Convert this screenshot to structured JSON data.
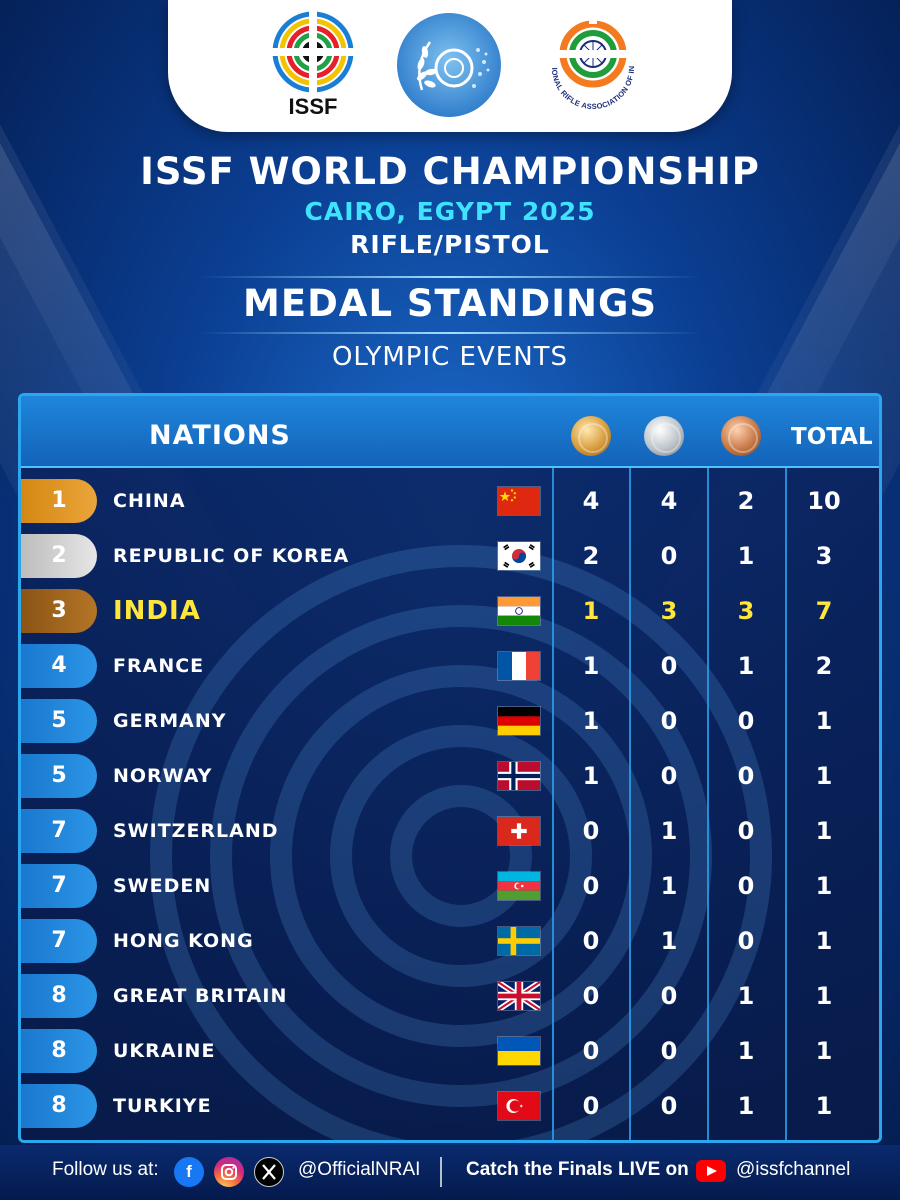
{
  "header": {
    "issf_logo_text": "ISSF",
    "nrai_logo_text": "NATIONAL RIFLE ASSOCIATION OF INDIA"
  },
  "titles": {
    "event": "ISSF WORLD CHAMPIONSHIP",
    "location": "CAIRO, EGYPT 2025",
    "discipline": "RIFLE/PISTOL",
    "heading": "MEDAL STANDINGS",
    "subheading": "OLYMPIC EVENTS"
  },
  "table": {
    "nations_header": "NATIONS",
    "total_header": "TOTAL",
    "medal_icons": [
      "gold-medal-icon",
      "silver-medal-icon",
      "bronze-medal-icon"
    ],
    "rows": [
      {
        "rank": "1",
        "nation": "CHINA",
        "flag": "china-flag-icon",
        "gold": "4",
        "silver": "4",
        "bronze": "2",
        "total": "10"
      },
      {
        "rank": "2",
        "nation": "REPUBLIC OF KOREA",
        "flag": "korea-flag-icon",
        "gold": "2",
        "silver": "0",
        "bronze": "1",
        "total": "3"
      },
      {
        "rank": "3",
        "nation": "INDIA",
        "flag": "india-flag-icon",
        "gold": "1",
        "silver": "3",
        "bronze": "3",
        "total": "7"
      },
      {
        "rank": "4",
        "nation": "FRANCE",
        "flag": "france-flag-icon",
        "gold": "1",
        "silver": "0",
        "bronze": "1",
        "total": "2"
      },
      {
        "rank": "5",
        "nation": "GERMANY",
        "flag": "germany-flag-icon",
        "gold": "1",
        "silver": "0",
        "bronze": "0",
        "total": "1"
      },
      {
        "rank": "5",
        "nation": "NORWAY",
        "flag": "norway-flag-icon",
        "gold": "1",
        "silver": "0",
        "bronze": "0",
        "total": "1"
      },
      {
        "rank": "7",
        "nation": "SWITZERLAND",
        "flag": "switzerland-flag-icon",
        "gold": "0",
        "silver": "1",
        "bronze": "0",
        "total": "1"
      },
      {
        "rank": "7",
        "nation": "SWEDEN",
        "flag": "azerbaijan-flag-icon",
        "gold": "0",
        "silver": "1",
        "bronze": "0",
        "total": "1"
      },
      {
        "rank": "7",
        "nation": "HONG KONG",
        "flag": "sweden-flag-icon",
        "gold": "0",
        "silver": "1",
        "bronze": "0",
        "total": "1"
      },
      {
        "rank": "8",
        "nation": "GREAT BRITAIN",
        "flag": "uk-flag-icon",
        "gold": "0",
        "silver": "0",
        "bronze": "1",
        "total": "1"
      },
      {
        "rank": "8",
        "nation": "UKRAINE",
        "flag": "ukraine-flag-icon",
        "gold": "0",
        "silver": "0",
        "bronze": "1",
        "total": "1"
      },
      {
        "rank": "8",
        "nation": "TURKIYE",
        "flag": "turkey-flag-icon",
        "gold": "0",
        "silver": "0",
        "bronze": "1",
        "total": "1"
      }
    ]
  },
  "footer": {
    "follow_label": "Follow us at:",
    "handle": "@OfficialNRAI",
    "catch_label": "Catch the Finals LIVE on",
    "youtube_handle": "@issfchannel",
    "social_icons": [
      "facebook-icon",
      "instagram-icon",
      "x-icon",
      "youtube-icon"
    ]
  },
  "colors": {
    "background": "#0b3f93",
    "accent_cyan": "#3fe3ff",
    "highlight_yellow": "#ffe63b",
    "rank_gold": "#e09a2a",
    "rank_silver": "#d9d9d9",
    "rank_bronze": "#a06a20",
    "rank_blue": "#2288dc"
  }
}
